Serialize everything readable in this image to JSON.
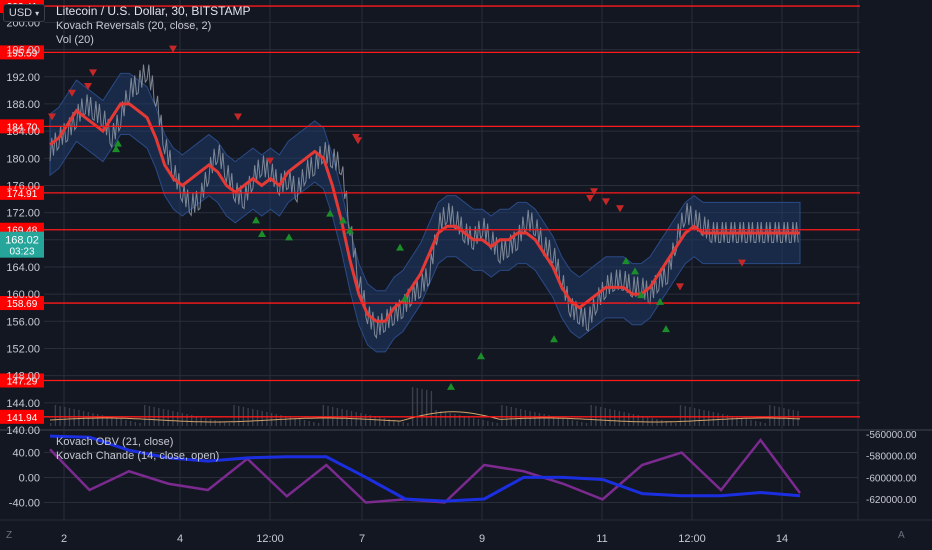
{
  "header": {
    "currency_button": "USD",
    "symbol_title": "Litecoin / U.S. Dollar, 30, BITSTAMP",
    "indicator_1": "Kovach Reversals (20, close, 2)",
    "indicator_2": "Vol (20)"
  },
  "lower_pane": {
    "indicator_1": "Kovach OBV (21, close)",
    "indicator_2": "Kovach Chande (14, close, open)"
  },
  "footer": {
    "left_corner": "Z",
    "right_corner": "A"
  },
  "price_tag": {
    "price": "168.02",
    "countdown": "03:23"
  },
  "colors": {
    "background": "#131722",
    "grid": "#2a2e39",
    "level_line": "#ff1a1a",
    "moving_average": "#e53935",
    "band_fill": "#1f3a68",
    "price_line": "#7d8796",
    "up_marker": "#1b8e2a",
    "down_marker": "#c62828",
    "volume_ma": "#d4a36a",
    "obv": "#1c2fe0",
    "chande": "#7b2a8f",
    "current_price_tag": "#26a69a"
  },
  "chart_data": [
    {
      "type": "line",
      "title": "Litecoin / U.S. Dollar, 30, BITSTAMP",
      "x_tick_labels": [
        "2",
        "4",
        "12:00",
        "7",
        "9",
        "11",
        "12:00",
        "14"
      ],
      "y_tick_labels": [
        "200.00",
        "196.00",
        "192.00",
        "188.00",
        "184.00",
        "180.00",
        "176.00",
        "172.00",
        "168.00",
        "164.00",
        "160.00",
        "156.00",
        "152.00",
        "148.00",
        "144.00",
        "140.00"
      ],
      "ylim": [
        140,
        203.3
      ],
      "grid": true,
      "horizontal_levels": [
        202.41,
        195.59,
        184.7,
        174.91,
        169.48,
        158.69,
        147.29,
        141.94
      ],
      "horizontal_level_labels": [
        "202.41",
        "195.59",
        "184.70",
        "174.91",
        "169.48",
        "158.69",
        "147.29",
        "141.94"
      ],
      "series": [
        {
          "x": [
            0,
            2,
            4,
            6,
            8,
            10,
            12,
            14,
            16,
            18,
            20,
            22,
            24,
            26,
            28,
            30,
            32,
            34,
            36,
            38,
            40,
            42,
            44,
            46,
            48,
            50,
            52,
            54,
            56,
            58,
            60,
            62,
            64,
            66,
            68,
            70,
            72,
            74,
            76,
            78,
            80,
            82,
            84,
            86,
            88,
            90,
            92,
            94,
            96,
            98,
            100,
            102,
            104,
            106,
            108,
            110,
            112,
            114,
            116,
            118,
            120,
            122,
            124,
            126,
            128,
            130,
            132,
            134,
            136,
            138,
            140,
            142,
            144,
            146,
            148,
            150,
            152,
            154,
            156,
            158,
            160,
            162,
            164,
            166,
            168,
            170
          ],
          "values": [
            181,
            183,
            184,
            186,
            188,
            187,
            186,
            183,
            186,
            190,
            191,
            193,
            189,
            182,
            178,
            175,
            173,
            174,
            178,
            181,
            178,
            175,
            174,
            177,
            179,
            178,
            176,
            177,
            175,
            178,
            179,
            181,
            180,
            179,
            170,
            162,
            157,
            155,
            156,
            157,
            158,
            160,
            161,
            163,
            170,
            172,
            171,
            169,
            168,
            170,
            168,
            166,
            167,
            168,
            171,
            170,
            167,
            166,
            162,
            158,
            157,
            156,
            159,
            161,
            162,
            162,
            161,
            161,
            160,
            162,
            163,
            168,
            172,
            171,
            170,
            169,
            169,
            169,
            169,
            169,
            169,
            169,
            169,
            169,
            169,
            169
          ]
        },
        {
          "x": [
            0,
            2,
            4,
            6,
            8,
            10,
            12,
            14,
            16,
            18,
            20,
            22,
            24,
            26,
            28,
            30,
            32,
            34,
            36,
            38,
            40,
            42,
            44,
            46,
            48,
            50,
            52,
            54,
            56,
            58,
            60,
            62,
            64,
            66,
            68,
            70,
            72,
            74,
            76,
            78,
            80,
            82,
            84,
            86,
            88,
            90,
            92,
            94,
            96,
            98,
            100,
            102,
            104,
            106,
            108,
            110,
            112,
            114,
            116,
            118,
            120,
            122,
            124,
            126,
            128,
            130,
            132,
            134,
            136,
            138,
            140,
            142,
            144,
            146,
            148,
            150,
            152,
            154,
            156,
            158,
            160,
            162,
            164,
            166,
            168,
            170
          ],
          "values": [
            182,
            183,
            185,
            187,
            186,
            185,
            184,
            186,
            188,
            188,
            187,
            186,
            183,
            179,
            177,
            176,
            177,
            178,
            179,
            178,
            176,
            175,
            176,
            177,
            176,
            177,
            176,
            178,
            179,
            180,
            181,
            180,
            176,
            171,
            165,
            160,
            157,
            156,
            156,
            158,
            159,
            161,
            163,
            166,
            169,
            170,
            170,
            169,
            168,
            168,
            167,
            168,
            168,
            169,
            169,
            168,
            166,
            164,
            161,
            159,
            158,
            159,
            160,
            161,
            161,
            161,
            160,
            160,
            161,
            163,
            165,
            167,
            169,
            170,
            169,
            169,
            169,
            169,
            169,
            169,
            169,
            169,
            169,
            169,
            169,
            169
          ]
        }
      ],
      "up_markers_price": [
        181.5,
        182.3,
        171.0,
        169.0,
        168.5,
        172.0,
        171.0,
        169.5,
        167.0,
        159.5,
        146.5,
        151.0,
        153.5,
        165.0,
        163.5,
        160.0,
        159.0,
        155.0
      ],
      "down_markers_price": [
        186.0,
        189.5,
        190.5,
        192.5,
        196.0,
        186.0,
        179.5,
        183.0,
        182.5,
        174.0,
        175.0,
        173.5,
        172.5,
        161.0,
        164.5
      ]
    },
    {
      "type": "line",
      "series": [
        {
          "name": "Kovach OBV (21, close)",
          "y_tick_labels": [
            "-560000.00",
            "-580000.00",
            "-600000.00",
            "-620000.00"
          ]
        },
        {
          "name": "Kovach Chande (14, close, open)",
          "y_tick_labels": [
            "40.00",
            "0.00",
            "-40.00"
          ]
        }
      ],
      "ylim": [
        -60,
        60
      ],
      "obv_values": [
        -562000,
        -563000,
        -575000,
        -582000,
        -585000,
        -582000,
        -581000,
        -581000,
        -600000,
        -620000,
        -622000,
        -620000,
        -600000,
        -600000,
        -602000,
        -615000,
        -617000,
        -617000,
        -614000,
        -617000
      ],
      "chande_values": [
        45,
        -20,
        10,
        -10,
        -20,
        30,
        -30,
        20,
        -40,
        -35,
        -40,
        20,
        10,
        -10,
        -35,
        20,
        40,
        -20,
        60,
        -25
      ]
    }
  ]
}
